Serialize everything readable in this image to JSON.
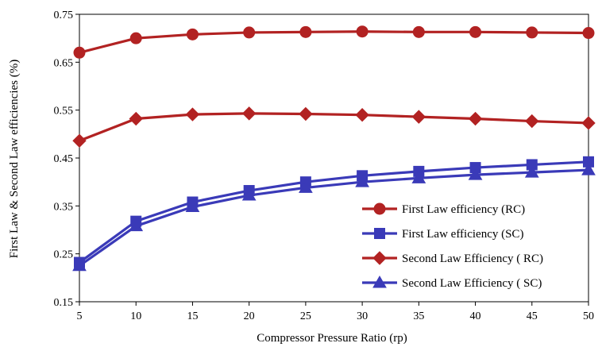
{
  "chart_data": {
    "type": "line",
    "title": "",
    "xlabel": "Compressor Pressure Ratio (rp)",
    "ylabel": "First Law & Second Law efficiencies (%)",
    "x": [
      5,
      10,
      15,
      20,
      25,
      30,
      35,
      40,
      45,
      50
    ],
    "xlim": [
      5,
      50
    ],
    "ylim": [
      0.15,
      0.75
    ],
    "xticks": [
      "5",
      "10",
      "15",
      "20",
      "25",
      "30",
      "35",
      "40",
      "45",
      "50"
    ],
    "yticks": [
      "0.15",
      "0.25",
      "0.35",
      "0.45",
      "0.55",
      "0.65",
      "0.75"
    ],
    "grid": false,
    "legend_position": "lower-right",
    "series": [
      {
        "name": "First Law efficiency  (RC)",
        "color": "#b22222",
        "marker": "circle",
        "values": [
          0.67,
          0.7,
          0.708,
          0.712,
          0.713,
          0.714,
          0.713,
          0.713,
          0.712,
          0.711
        ]
      },
      {
        "name": "First Law efficiency (SC)",
        "color": "#3a3ab8",
        "marker": "square",
        "values": [
          0.232,
          0.318,
          0.358,
          0.382,
          0.4,
          0.413,
          0.422,
          0.43,
          0.436,
          0.442
        ]
      },
      {
        "name": "Second Law Efficiency ( RC)",
        "color": "#b22222",
        "marker": "diamond",
        "values": [
          0.486,
          0.532,
          0.541,
          0.543,
          0.542,
          0.54,
          0.536,
          0.532,
          0.527,
          0.523
        ]
      },
      {
        "name": "Second Law Efficiency ( SC)",
        "color": "#3a3ab8",
        "marker": "triangle",
        "values": [
          0.225,
          0.308,
          0.348,
          0.372,
          0.388,
          0.4,
          0.408,
          0.415,
          0.42,
          0.425
        ]
      }
    ]
  }
}
